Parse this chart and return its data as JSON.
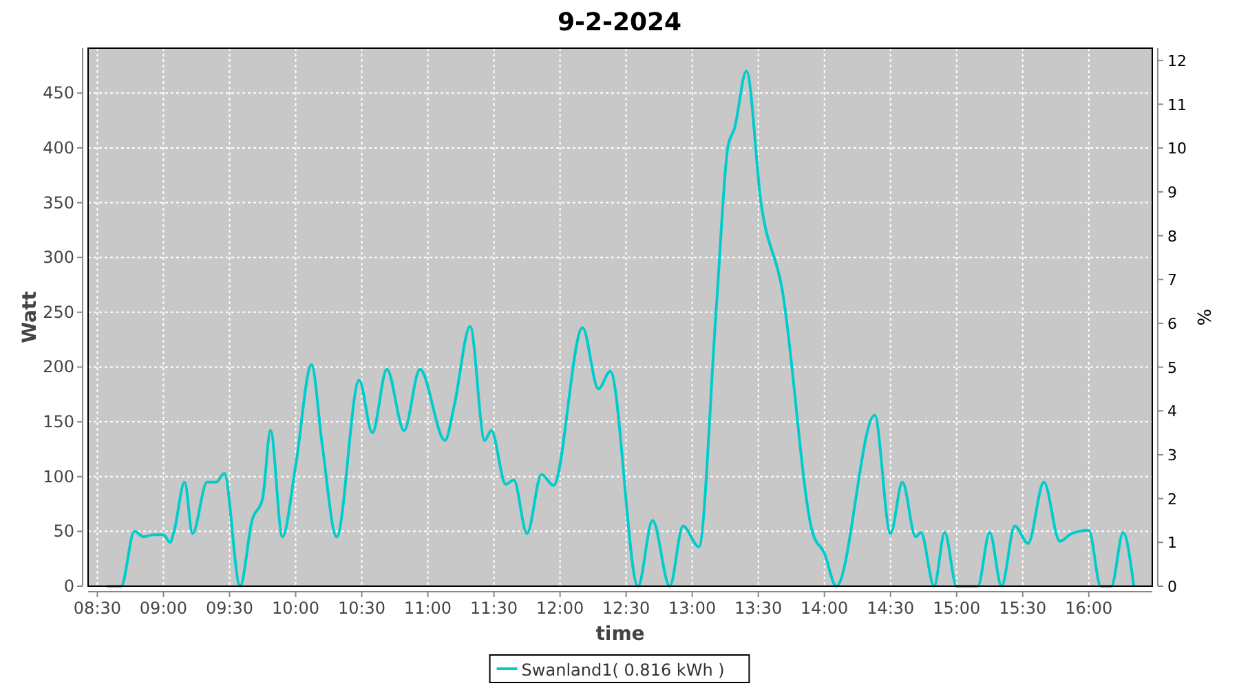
{
  "chart_data": {
    "type": "line",
    "title": "9-2-2024",
    "xlabel": "time",
    "ylabel": "Watt",
    "y2label": "%",
    "xlim": [
      8.43,
      16.48
    ],
    "ylim": [
      0,
      491
    ],
    "y2lim": [
      0,
      12.28
    ],
    "xticks": [
      {
        "value": 8.5,
        "label": "08:30"
      },
      {
        "value": 9,
        "label": "09:00"
      },
      {
        "value": 9.5,
        "label": "09:30"
      },
      {
        "value": 10,
        "label": "10:00"
      },
      {
        "value": 10.5,
        "label": "10:30"
      },
      {
        "value": 11,
        "label": "11:00"
      },
      {
        "value": 11.5,
        "label": "11:30"
      },
      {
        "value": 12,
        "label": "12:00"
      },
      {
        "value": 12.5,
        "label": "12:30"
      },
      {
        "value": 13,
        "label": "13:00"
      },
      {
        "value": 13.5,
        "label": "13:30"
      },
      {
        "value": 14,
        "label": "14:00"
      },
      {
        "value": 14.5,
        "label": "14:30"
      },
      {
        "value": 15,
        "label": "15:00"
      },
      {
        "value": 15.5,
        "label": "15:30"
      },
      {
        "value": 16,
        "label": "16:00"
      }
    ],
    "yticks": [
      0,
      50,
      100,
      150,
      200,
      250,
      300,
      350,
      400,
      450
    ],
    "y2ticks": [
      0,
      1,
      2,
      3,
      4,
      5,
      6,
      7,
      8,
      9,
      10,
      11,
      12
    ],
    "grid": true,
    "legend": "bottom",
    "marker": "none",
    "line_style": "solid",
    "series": [
      {
        "name": "Swanland1( 0.816 kWh )",
        "color": "#00cccc",
        "x": [
          8.57,
          8.68,
          8.78,
          8.85,
          8.92,
          9.0,
          9.05,
          9.08,
          9.16,
          9.22,
          9.33,
          9.4,
          9.46,
          9.58,
          9.67,
          9.75,
          9.81,
          9.9,
          10.0,
          10.12,
          10.2,
          10.31,
          10.48,
          10.58,
          10.69,
          10.82,
          10.94,
          11.13,
          11.2,
          11.32,
          11.43,
          11.48,
          11.59,
          11.65,
          11.75,
          11.86,
          11.95,
          12.17,
          12.29,
          12.38,
          12.59,
          12.7,
          12.83,
          12.93,
          13.05,
          13.18,
          13.27,
          13.32,
          13.41,
          13.52,
          13.68,
          13.91,
          14.0,
          14.09,
          14.38,
          14.5,
          14.59,
          14.69,
          14.73,
          14.83,
          14.91,
          15.0,
          15.16,
          15.25,
          15.34,
          15.44,
          15.54,
          15.66,
          15.78,
          15.87,
          16.0,
          16.09,
          16.17,
          16.26,
          16.34
        ],
        "values": [
          0,
          0,
          50,
          45,
          47,
          47,
          40,
          50,
          95,
          48,
          95,
          95,
          103,
          0,
          60,
          80,
          142,
          45,
          110,
          202,
          130,
          45,
          188,
          140,
          198,
          142,
          198,
          133,
          165,
          237,
          133,
          142,
          93,
          97,
          48,
          102,
          92,
          236,
          180,
          196,
          0,
          60,
          0,
          55,
          36,
          250,
          401,
          418,
          470,
          350,
          271,
          49,
          30,
          0,
          156,
          48,
          95,
          45,
          49,
          0,
          49,
          0,
          0,
          49,
          0,
          55,
          39,
          95,
          41,
          48,
          51,
          0,
          0,
          49,
          0
        ]
      }
    ]
  }
}
